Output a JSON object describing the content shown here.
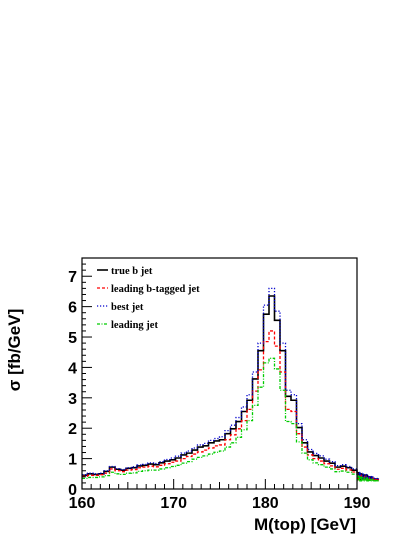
{
  "chart_data": {
    "type": "line",
    "title": "",
    "xlabel": "M(top) [GeV]",
    "ylabel": "σ [fb/GeV]",
    "xlim": [
      160,
      190
    ],
    "ylim": [
      0,
      7.6
    ],
    "x_ticks": [
      "160",
      "170",
      "180",
      "190"
    ],
    "y_ticks": [
      "0",
      "1",
      "2",
      "3",
      "4",
      "5",
      "6",
      "7"
    ],
    "bin_width": 0.6,
    "x_start": 160,
    "grid": false,
    "legend_position": "top-left",
    "series": [
      {
        "name": "true b jet",
        "color": "#000000",
        "dash": "solid",
        "values": [
          0.45,
          0.5,
          0.48,
          0.5,
          0.58,
          0.72,
          0.65,
          0.62,
          0.68,
          0.7,
          0.76,
          0.78,
          0.82,
          0.8,
          0.86,
          0.92,
          0.96,
          1.02,
          1.12,
          1.18,
          1.28,
          1.38,
          1.42,
          1.52,
          1.58,
          1.62,
          1.82,
          1.98,
          2.22,
          2.55,
          2.92,
          3.62,
          4.55,
          5.75,
          6.35,
          5.55,
          4.55,
          3.05,
          2.92,
          2.02,
          1.52,
          1.22,
          1.1,
          1.02,
          0.92,
          0.85,
          0.72,
          0.75,
          0.7,
          0.62,
          0.55,
          0.48,
          0.45,
          0.38,
          0.32
        ]
      },
      {
        "name": "leading b-tagged jet",
        "color": "#ff0000",
        "dash": "3,2",
        "values": [
          0.42,
          0.45,
          0.45,
          0.47,
          0.52,
          0.66,
          0.6,
          0.57,
          0.62,
          0.64,
          0.7,
          0.72,
          0.75,
          0.73,
          0.78,
          0.83,
          0.88,
          0.92,
          1.0,
          1.07,
          1.15,
          1.22,
          1.28,
          1.35,
          1.42,
          1.45,
          1.62,
          1.78,
          1.98,
          2.25,
          2.62,
          3.22,
          3.92,
          4.85,
          5.2,
          4.7,
          3.85,
          2.62,
          2.55,
          1.82,
          1.38,
          1.12,
          1.0,
          0.92,
          0.83,
          0.76,
          0.65,
          0.68,
          0.63,
          0.56,
          0.5,
          0.44,
          0.41,
          0.35,
          0.3
        ]
      },
      {
        "name": "best jet",
        "color": "#0000cc",
        "dash": "1.2,1.8",
        "values": [
          0.47,
          0.52,
          0.5,
          0.52,
          0.6,
          0.74,
          0.67,
          0.64,
          0.7,
          0.73,
          0.79,
          0.81,
          0.86,
          0.84,
          0.9,
          0.97,
          1.02,
          1.08,
          1.18,
          1.25,
          1.35,
          1.45,
          1.5,
          1.6,
          1.66,
          1.72,
          1.92,
          2.1,
          2.35,
          2.7,
          3.1,
          3.85,
          4.8,
          6.05,
          6.6,
          5.85,
          4.8,
          3.25,
          3.1,
          2.15,
          1.62,
          1.3,
          1.17,
          1.09,
          0.98,
          0.9,
          0.77,
          0.8,
          0.74,
          0.66,
          0.58,
          0.51,
          0.47,
          0.4,
          0.34
        ]
      },
      {
        "name": "leading jet",
        "color": "#00cc00",
        "dash": "3,1.5,1,1.5",
        "values": [
          0.35,
          0.38,
          0.38,
          0.4,
          0.44,
          0.55,
          0.5,
          0.48,
          0.52,
          0.53,
          0.58,
          0.6,
          0.62,
          0.62,
          0.66,
          0.7,
          0.74,
          0.78,
          0.85,
          0.9,
          0.98,
          1.04,
          1.09,
          1.15,
          1.21,
          1.25,
          1.38,
          1.52,
          1.7,
          1.95,
          2.25,
          2.75,
          3.35,
          4.15,
          4.3,
          3.95,
          3.25,
          2.22,
          2.15,
          1.55,
          1.18,
          0.96,
          0.86,
          0.8,
          0.72,
          0.66,
          0.57,
          0.59,
          0.55,
          0.49,
          0.44,
          0.39,
          0.36,
          0.31,
          0.27
        ]
      }
    ]
  }
}
